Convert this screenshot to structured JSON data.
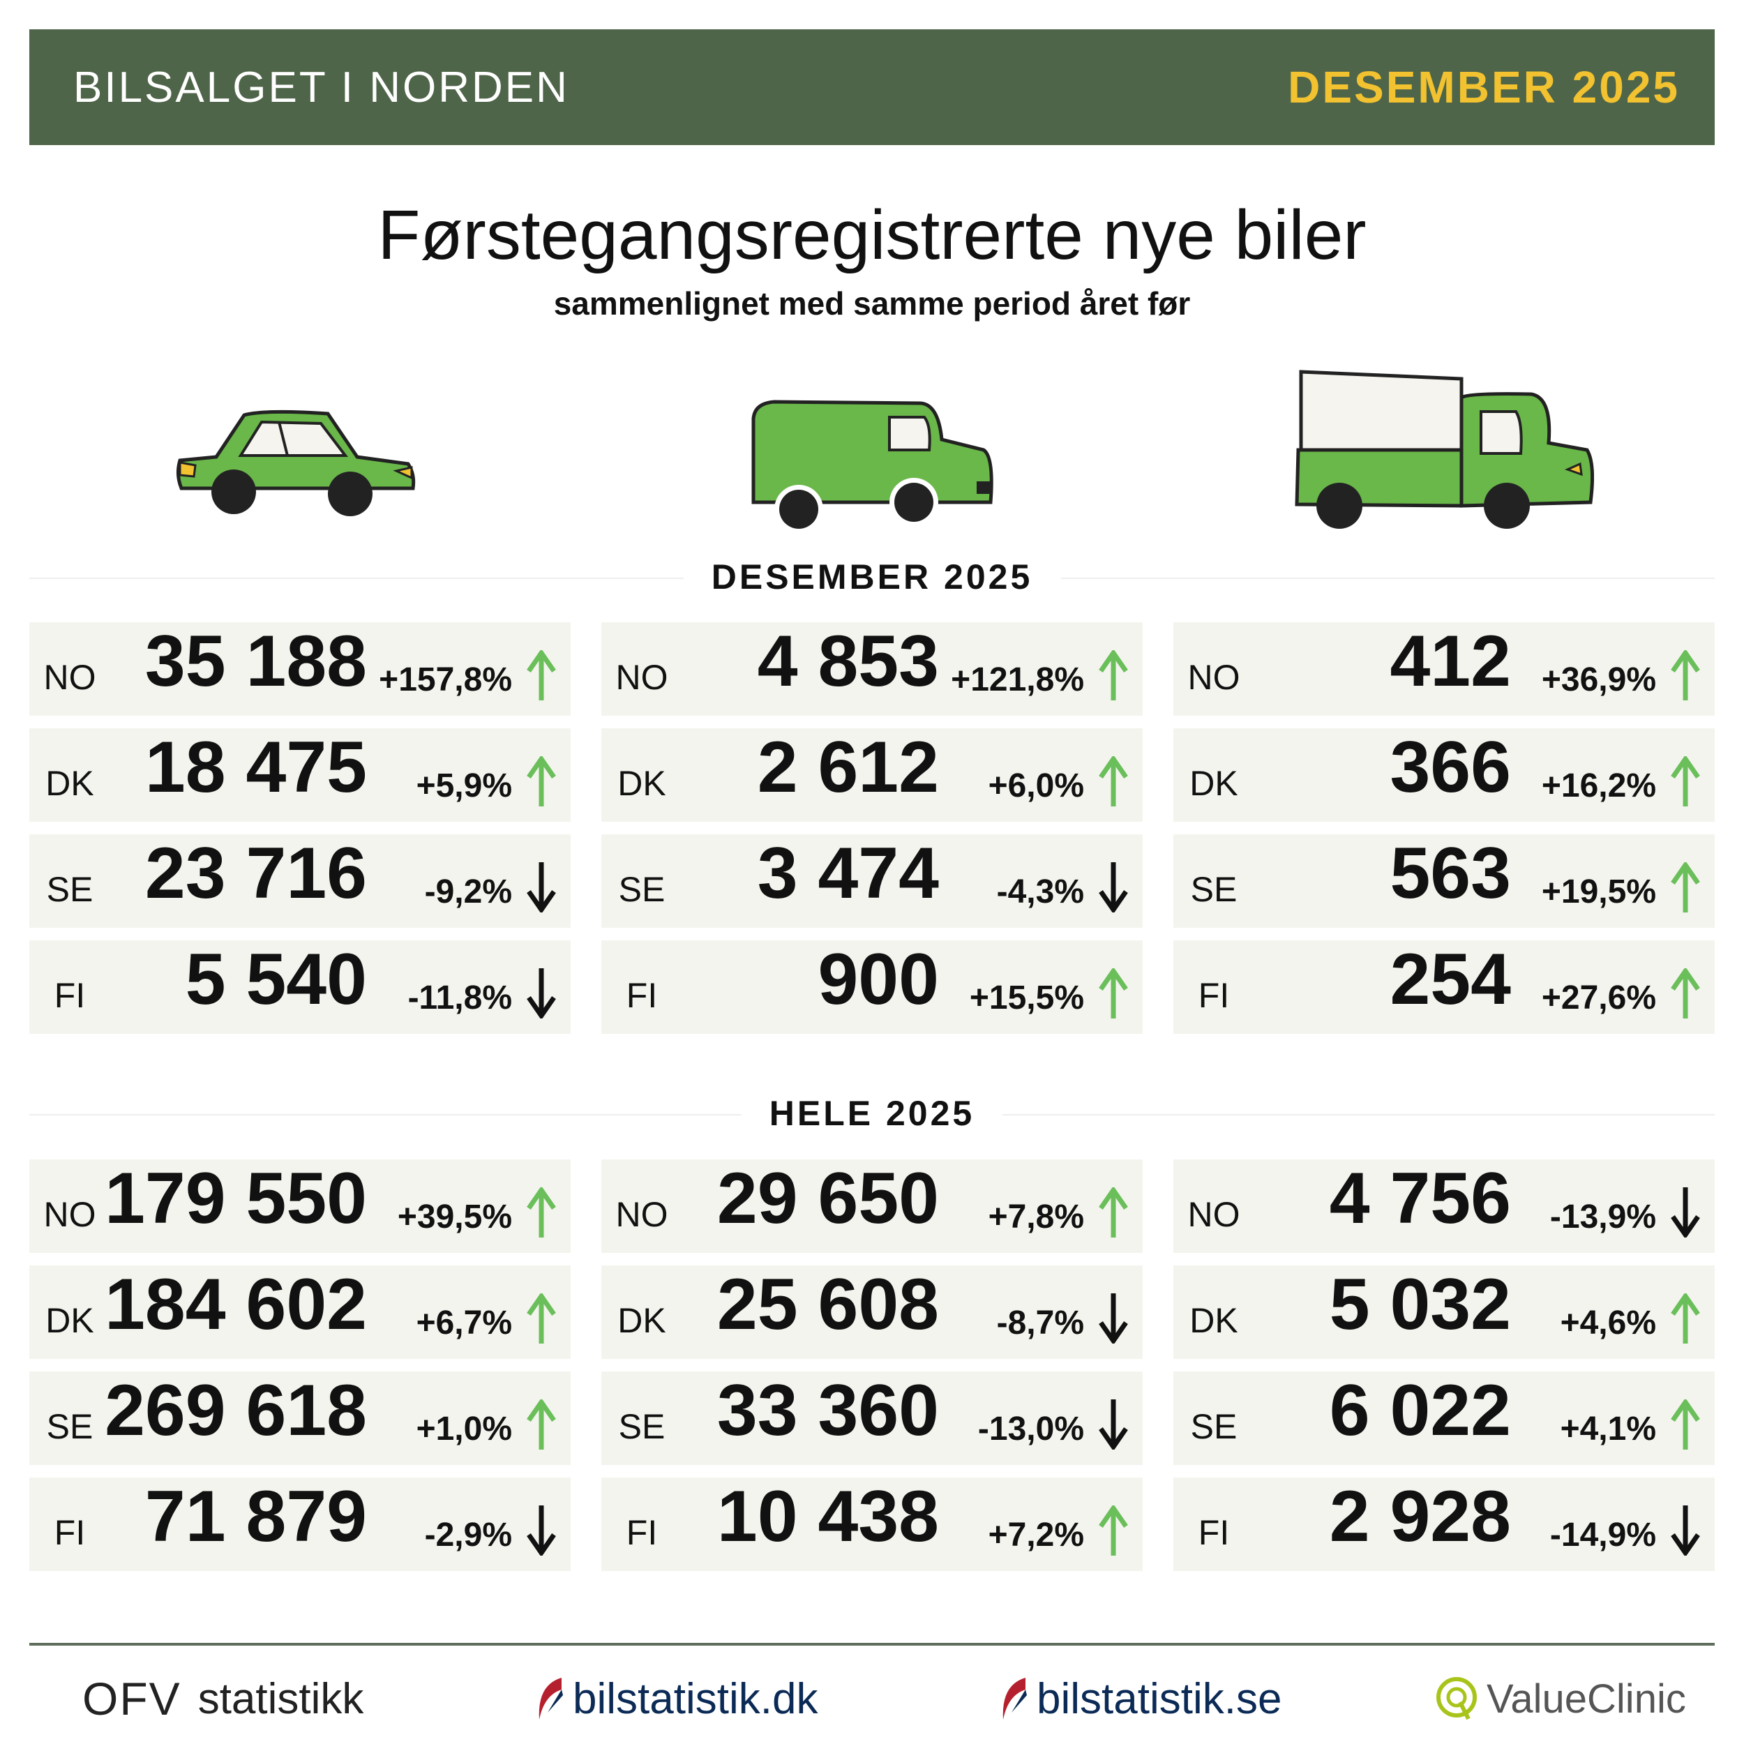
{
  "header": {
    "title": "BILSALGET I NORDEN",
    "period": "DESEMBER 2025"
  },
  "main": {
    "title": "Førstegangsregistrerte nye biler",
    "subtitle": "sammenlignet med samme period året før"
  },
  "vehicles": [
    "car-icon",
    "van-icon",
    "truck-icon"
  ],
  "colors": {
    "header_bg": "#4f6549",
    "accent": "#f2c230",
    "up": "#6abf5a",
    "down": "#111111",
    "card_bg": "#f4f4ee"
  },
  "sections": [
    {
      "label": "DESEMBER 2025",
      "columns": [
        [
          {
            "cc": "NO",
            "value": "35 188",
            "change": "+157,8%",
            "dir": "up"
          },
          {
            "cc": "DK",
            "value": "18 475",
            "change": "+5,9%",
            "dir": "up"
          },
          {
            "cc": "SE",
            "value": "23 716",
            "change": "-9,2%",
            "dir": "down"
          },
          {
            "cc": "FI",
            "value": "5 540",
            "change": "-11,8%",
            "dir": "down"
          }
        ],
        [
          {
            "cc": "NO",
            "value": "4 853",
            "change": "+121,8%",
            "dir": "up"
          },
          {
            "cc": "DK",
            "value": "2 612",
            "change": "+6,0%",
            "dir": "up"
          },
          {
            "cc": "SE",
            "value": "3 474",
            "change": "-4,3%",
            "dir": "down"
          },
          {
            "cc": "FI",
            "value": "900",
            "change": "+15,5%",
            "dir": "up"
          }
        ],
        [
          {
            "cc": "NO",
            "value": "412",
            "change": "+36,9%",
            "dir": "up"
          },
          {
            "cc": "DK",
            "value": "366",
            "change": "+16,2%",
            "dir": "up"
          },
          {
            "cc": "SE",
            "value": "563",
            "change": "+19,5%",
            "dir": "up"
          },
          {
            "cc": "FI",
            "value": "254",
            "change": "+27,6%",
            "dir": "up"
          }
        ]
      ]
    },
    {
      "label": "HELE 2025",
      "columns": [
        [
          {
            "cc": "NO",
            "value": "179 550",
            "change": "+39,5%",
            "dir": "up"
          },
          {
            "cc": "DK",
            "value": "184 602",
            "change": "+6,7%",
            "dir": "up"
          },
          {
            "cc": "SE",
            "value": "269 618",
            "change": "+1,0%",
            "dir": "up"
          },
          {
            "cc": "FI",
            "value": "71 879",
            "change": "-2,9%",
            "dir": "down"
          }
        ],
        [
          {
            "cc": "NO",
            "value": "29 650",
            "change": "+7,8%",
            "dir": "up"
          },
          {
            "cc": "DK",
            "value": "25 608",
            "change": "-8,7%",
            "dir": "down"
          },
          {
            "cc": "SE",
            "value": "33 360",
            "change": "-13,0%",
            "dir": "down"
          },
          {
            "cc": "FI",
            "value": "10 438",
            "change": "+7,2%",
            "dir": "up"
          }
        ],
        [
          {
            "cc": "NO",
            "value": "4 756",
            "change": "-13,9%",
            "dir": "down"
          },
          {
            "cc": "DK",
            "value": "5 032",
            "change": "+4,6%",
            "dir": "up"
          },
          {
            "cc": "SE",
            "value": "6 022",
            "change": "+4,1%",
            "dir": "up"
          },
          {
            "cc": "FI",
            "value": "2 928",
            "change": "-14,9%",
            "dir": "down"
          }
        ]
      ]
    }
  ],
  "footer": {
    "logos": [
      {
        "mark": "OFV",
        "text": "statistikk"
      },
      {
        "text": "bilstatistik.dk"
      },
      {
        "text": "bilstatistik.se"
      },
      {
        "text": "ValueClinic"
      }
    ]
  }
}
